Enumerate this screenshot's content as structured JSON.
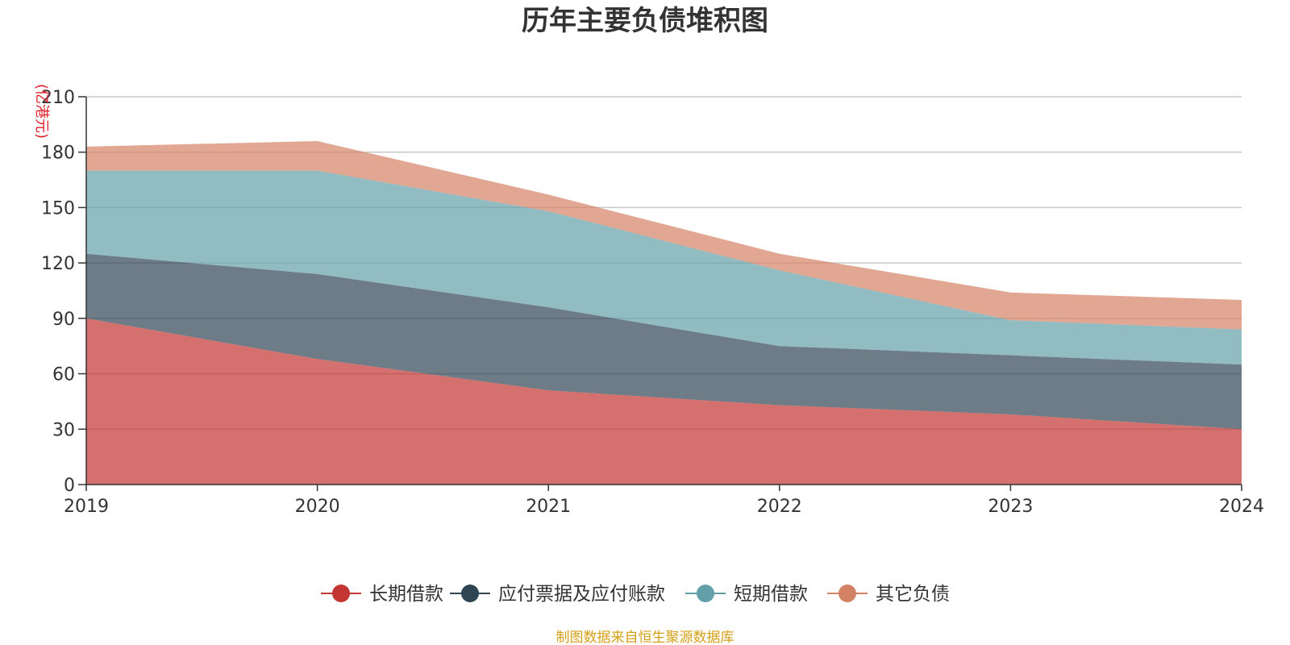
{
  "chart_data": {
    "type": "area",
    "stacked": true,
    "title": "历年主要负债堆积图",
    "unit_label": "(亿港元)",
    "x": [
      "2019",
      "2020",
      "2021",
      "2022",
      "2023",
      "2024"
    ],
    "ylim": [
      0,
      210
    ],
    "yticks": [
      0,
      30,
      60,
      90,
      120,
      150,
      180,
      210
    ],
    "grid": true,
    "legend_position": "bottom-center",
    "series": [
      {
        "name": "长期借款",
        "values": [
          90,
          68,
          51,
          43,
          38,
          30
        ],
        "color": "#c23531"
      },
      {
        "name": "应付票据及应付账款",
        "values": [
          35,
          46,
          45,
          32,
          32,
          35
        ],
        "color": "#2f4554"
      },
      {
        "name": "短期借款",
        "values": [
          45,
          56,
          52,
          41,
          19,
          19
        ],
        "color": "#61a0a8"
      },
      {
        "name": "其它负债",
        "values": [
          13,
          16,
          9,
          9,
          15,
          16
        ],
        "color": "#d48265"
      }
    ],
    "source": "制图数据来自恒生聚源数据库"
  }
}
